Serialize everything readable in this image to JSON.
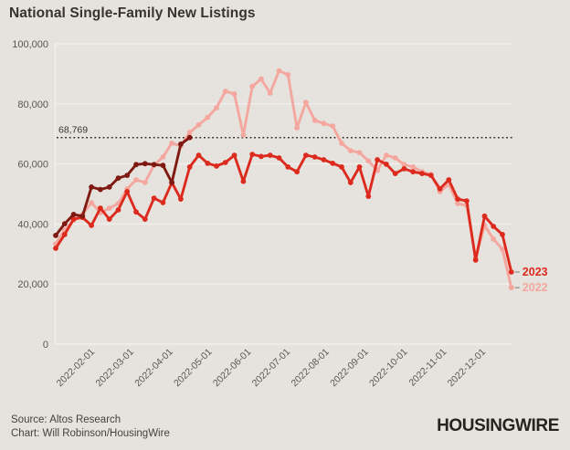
{
  "title": "National Single-Family New Listings",
  "footer": {
    "source_line": "Source: Altos Research",
    "credit_line": "Chart: Will Robinson/HousingWire",
    "logo_text": "HOUSINGWIRE"
  },
  "colors": {
    "background": "#e6e2de",
    "gridline": "#f2efec",
    "axis_text": "#5b5651",
    "title_text": "#38332e",
    "footer_text": "#45413c",
    "logo_text": "#26221f",
    "reference_line": "#2f2b27",
    "legend_dash": "#9a958f",
    "series_2023_red": "#dc2b1e",
    "series_2022_pink": "#f4a79e",
    "series_dark_red": "#7e1a11"
  },
  "chart_data": {
    "type": "line",
    "title": "National Single-Family New Listings",
    "frequency": "weekly",
    "grid": "horizontal",
    "legend_position": "line-end-right",
    "x_axis": {
      "tick_labels": [
        "2022-02-01",
        "2022-03-01",
        "2022-04-01",
        "2022-05-01",
        "2022-06-01",
        "2022-07-01",
        "2022-08-01",
        "2022-09-01",
        "2022-10-01",
        "2022-11-01",
        "2022-12-01"
      ]
    },
    "y_axis": {
      "range": [
        0,
        100000
      ],
      "tick_values": [
        0,
        20000,
        40000,
        60000,
        80000,
        100000
      ],
      "tick_labels": [
        "0",
        "20,000",
        "40,000",
        "60,000",
        "80,000",
        "100,000"
      ]
    },
    "reference_line": {
      "value": 68769,
      "label": "68,769",
      "style": "dotted"
    },
    "series": [
      {
        "id": "2022",
        "end_label": "2022",
        "color": "#f4a79e",
        "values": [
          33400,
          38000,
          41300,
          43200,
          47100,
          43800,
          45300,
          46800,
          51700,
          54700,
          53800,
          59600,
          62300,
          66900,
          66000,
          70500,
          73000,
          75500,
          78700,
          84200,
          83300,
          69600,
          85800,
          88300,
          83600,
          91000,
          89700,
          72000,
          80500,
          74500,
          73500,
          72600,
          66900,
          64400,
          63800,
          61000,
          57800,
          62900,
          62000,
          59800,
          59000,
          57400,
          56500,
          50800,
          53200,
          46800,
          46200,
          28600,
          39500,
          35000,
          31600,
          18800
        ]
      },
      {
        "id": "2023",
        "end_label": "2023",
        "color": "#dc2b1e",
        "values": [
          31900,
          36500,
          41600,
          42200,
          39500,
          45300,
          41600,
          44700,
          50800,
          44000,
          41600,
          48600,
          47100,
          53800,
          48300,
          59000,
          62900,
          60200,
          59300,
          60500,
          62900,
          54200,
          63200,
          62500,
          62900,
          62000,
          59000,
          57400,
          62900,
          62300,
          61400,
          60200,
          59000,
          53800,
          59000,
          49200,
          61400,
          59900,
          56800,
          58400,
          57400,
          56800,
          56200,
          51700,
          54700,
          48300,
          47700,
          28000,
          42600,
          39200,
          36500,
          24000
        ]
      },
      {
        "id": "unlabeled-dark-partial",
        "end_label": "",
        "color": "#7e1a11",
        "values": [
          36200,
          40100,
          43200,
          42600,
          52300,
          51500,
          52300,
          55300,
          56200,
          59800,
          60100,
          59800,
          59500,
          53800,
          66600,
          68769
        ]
      }
    ]
  }
}
